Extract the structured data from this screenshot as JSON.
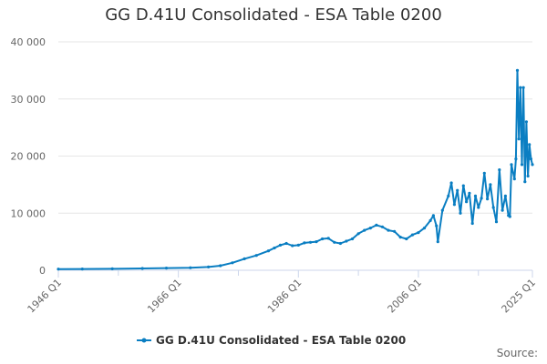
{
  "colors": {
    "series": "#0a7ec2",
    "grid": "#e6e6e6",
    "axis": "#ccd6eb",
    "text": "#666666"
  },
  "credits": "Source:",
  "chart_data": {
    "type": "line",
    "title": "GG D.41U Consolidated - ESA Table 0200",
    "xlabel": "",
    "ylabel": "",
    "x_tick_labels": [
      "1946 Q1",
      "1966 Q1",
      "1986 Q1",
      "2006 Q1",
      "2025 Q1"
    ],
    "y_tick_labels": [
      "0",
      "10 000",
      "20 000",
      "30 000",
      "40 000"
    ],
    "y_ticks": [
      0,
      10000,
      20000,
      30000,
      40000
    ],
    "ylim": [
      0,
      40000
    ],
    "xlim": [
      "1946 Q1",
      "2025 Q1"
    ],
    "grid": true,
    "legend_position": "bottom-center",
    "series": [
      {
        "name": "GG D.41U Consolidated - ESA Table 0200",
        "points": [
          [
            "1946 Q1",
            200
          ],
          [
            "1950 Q1",
            220
          ],
          [
            "1955 Q1",
            260
          ],
          [
            "1960 Q1",
            320
          ],
          [
            "1964 Q1",
            380
          ],
          [
            "1968 Q1",
            450
          ],
          [
            "1971 Q1",
            580
          ],
          [
            "1973 Q1",
            800
          ],
          [
            "1975 Q1",
            1300
          ],
          [
            "1977 Q1",
            2000
          ],
          [
            "1979 Q1",
            2600
          ],
          [
            "1981 Q1",
            3400
          ],
          [
            "1982 Q1",
            3900
          ],
          [
            "1983 Q1",
            4400
          ],
          [
            "1984 Q1",
            4700
          ],
          [
            "1985 Q1",
            4300
          ],
          [
            "1986 Q1",
            4400
          ],
          [
            "1987 Q1",
            4800
          ],
          [
            "1988 Q1",
            4900
          ],
          [
            "1989 Q1",
            5000
          ],
          [
            "1990 Q1",
            5500
          ],
          [
            "1991 Q1",
            5600
          ],
          [
            "1992 Q1",
            4900
          ],
          [
            "1993 Q1",
            4700
          ],
          [
            "1994 Q1",
            5100
          ],
          [
            "1995 Q1",
            5500
          ],
          [
            "1996 Q1",
            6400
          ],
          [
            "1997 Q1",
            7000
          ],
          [
            "1998 Q1",
            7400
          ],
          [
            "1999 Q1",
            7900
          ],
          [
            "2000 Q1",
            7600
          ],
          [
            "2001 Q1",
            7000
          ],
          [
            "2002 Q1",
            6800
          ],
          [
            "2003 Q1",
            5800
          ],
          [
            "2004 Q1",
            5500
          ],
          [
            "2005 Q1",
            6200
          ],
          [
            "2006 Q1",
            6600
          ],
          [
            "2007 Q1",
            7400
          ],
          [
            "2008 Q1",
            8700
          ],
          [
            "2008 Q3",
            9600
          ],
          [
            "2009 Q1",
            7800
          ],
          [
            "2009 Q2",
            5000
          ],
          [
            "2010 Q1",
            10500
          ],
          [
            "2011 Q1",
            13000
          ],
          [
            "2011 Q3",
            15300
          ],
          [
            "2012 Q1",
            11500
          ],
          [
            "2012 Q3",
            14000
          ],
          [
            "2013 Q1",
            10000
          ],
          [
            "2013 Q3",
            14800
          ],
          [
            "2014 Q1",
            12000
          ],
          [
            "2014 Q3",
            13500
          ],
          [
            "2015 Q1",
            8200
          ],
          [
            "2015 Q3",
            13000
          ],
          [
            "2016 Q1",
            11000
          ],
          [
            "2016 Q3",
            12600
          ],
          [
            "2017 Q1",
            17000
          ],
          [
            "2017 Q3",
            12500
          ],
          [
            "2018 Q1",
            15000
          ],
          [
            "2018 Q3",
            11000
          ],
          [
            "2019 Q1",
            8500
          ],
          [
            "2019 Q3",
            17600
          ],
          [
            "2020 Q1",
            10500
          ],
          [
            "2020 Q3",
            13000
          ],
          [
            "2021 Q1",
            9600
          ],
          [
            "2021 Q2",
            9400
          ],
          [
            "2021 Q3",
            18500
          ],
          [
            "2022 Q1",
            16000
          ],
          [
            "2022 Q2",
            19500
          ],
          [
            "2022 Q3",
            35000
          ],
          [
            "2022 Q4",
            23000
          ],
          [
            "2023 Q1",
            32000
          ],
          [
            "2023 Q2",
            18500
          ],
          [
            "2023 Q3",
            32000
          ],
          [
            "2023 Q4",
            15500
          ],
          [
            "2024 Q1",
            26000
          ],
          [
            "2024 Q2",
            16500
          ],
          [
            "2024 Q3",
            22000
          ],
          [
            "2024 Q4",
            19500
          ],
          [
            "2025 Q1",
            18500
          ]
        ]
      }
    ]
  }
}
